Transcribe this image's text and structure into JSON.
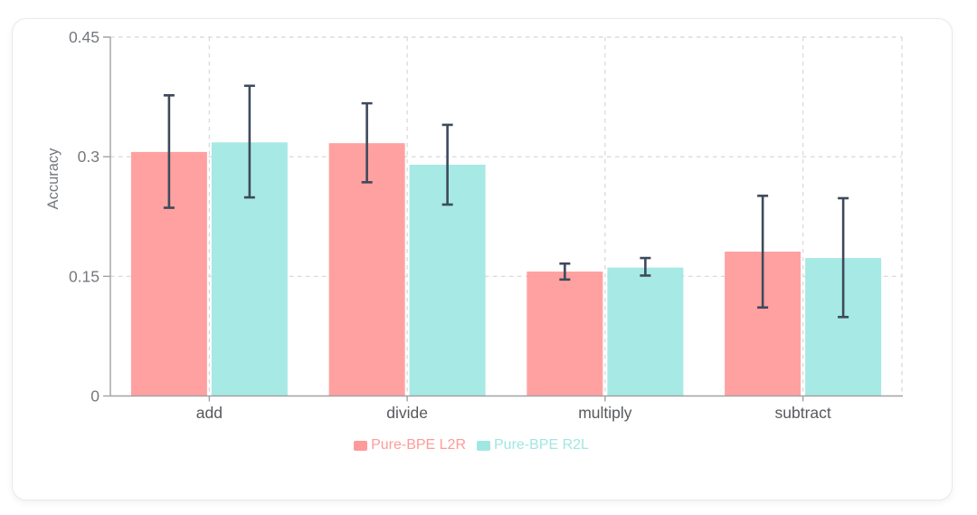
{
  "chart_data": {
    "type": "bar",
    "title": "",
    "xlabel": "",
    "ylabel": "Accuracy",
    "categories": [
      "add",
      "divide",
      "multiply",
      "subtract"
    ],
    "series": [
      {
        "name": "Pure-BPE L2R",
        "color": "#ff9a9a",
        "values": [
          0.306,
          0.317,
          0.156,
          0.181
        ],
        "error_low": [
          0.236,
          0.268,
          0.146,
          0.111
        ],
        "error_high": [
          0.377,
          0.367,
          0.166,
          0.251
        ]
      },
      {
        "name": "Pure-BPE R2L",
        "color": "#a0e7e2",
        "values": [
          0.318,
          0.29,
          0.161,
          0.173
        ],
        "error_low": [
          0.249,
          0.24,
          0.151,
          0.099
        ],
        "error_high": [
          0.389,
          0.34,
          0.173,
          0.248
        ]
      }
    ],
    "ylim": [
      0,
      0.45
    ],
    "ytick_values": [
      0,
      0.15,
      0.3,
      0.45
    ],
    "ytick_labels": [
      "0",
      "0.15",
      "0.3",
      "0.45"
    ],
    "grid": "dashed",
    "legend_position": "bottom",
    "styles": {
      "error_bar_color": "#3e4a5b",
      "axis_color": "#a2a2a2",
      "grid_color": "#dcdcdc",
      "tick_label_color": "#75797d",
      "category_label_color": "#56595d"
    }
  }
}
